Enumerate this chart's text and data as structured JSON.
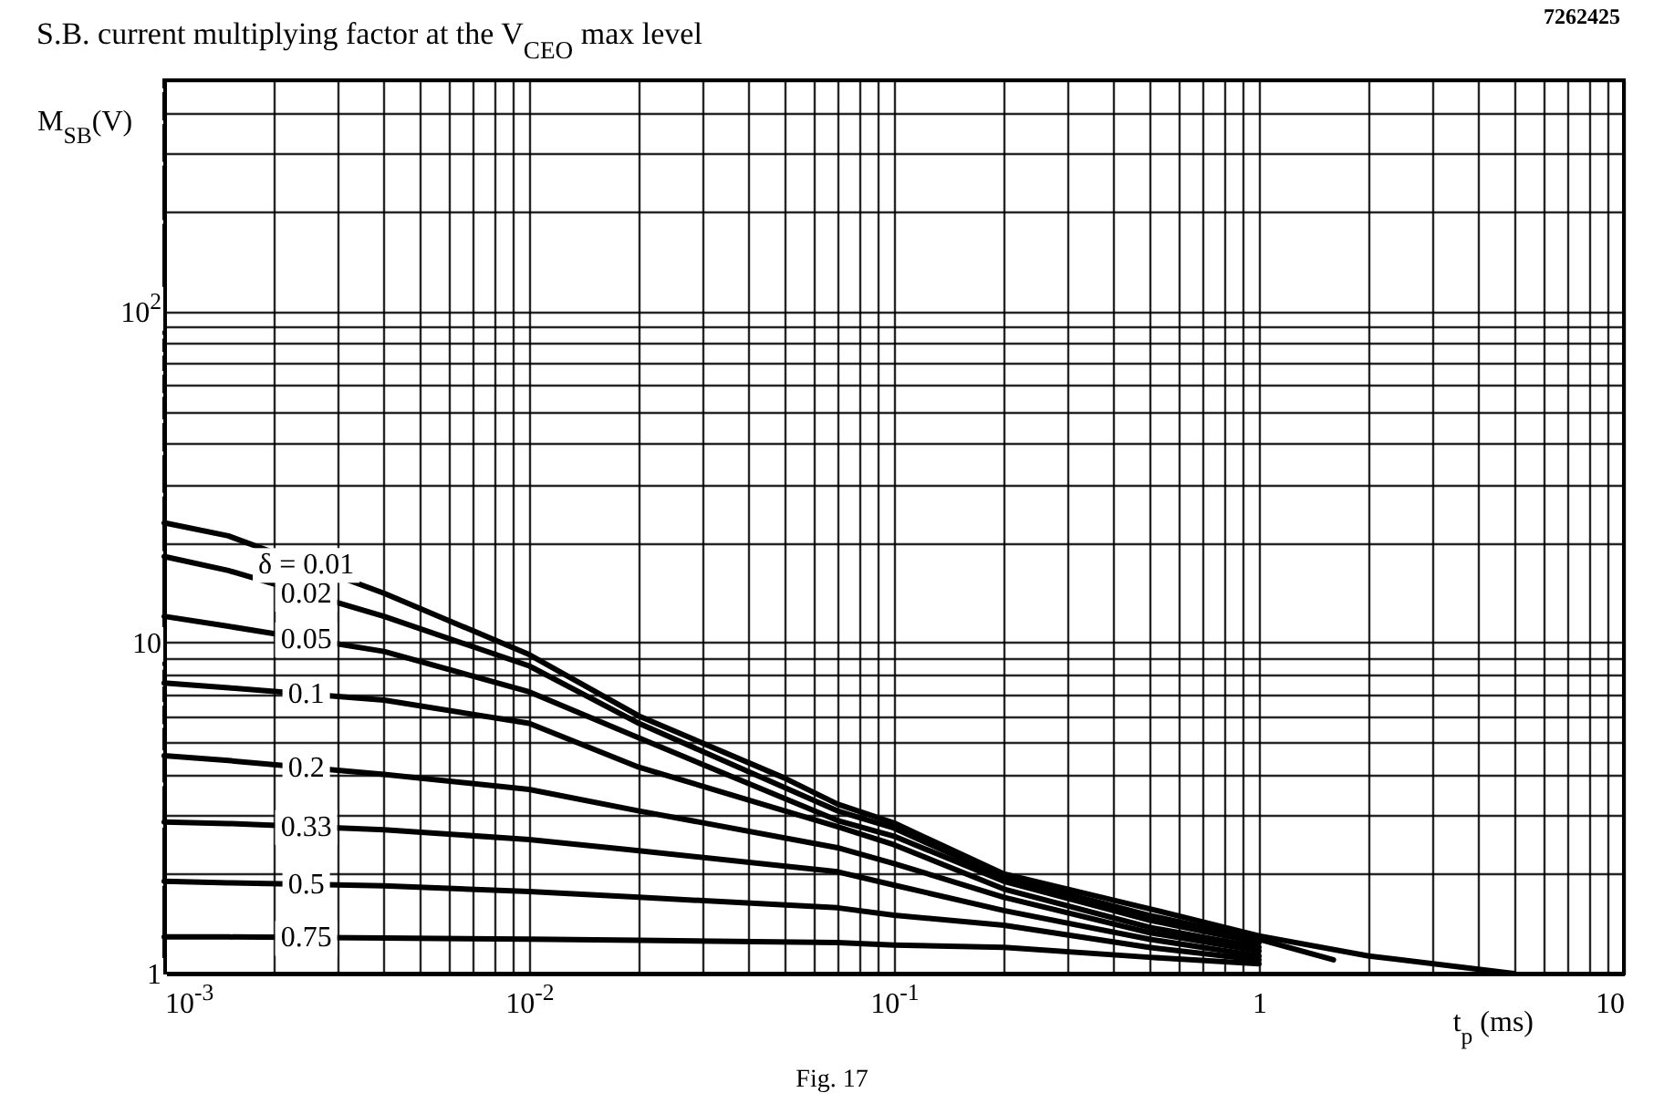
{
  "chart_data": {
    "type": "line",
    "title": "S.B. current multiplying factor at the V$_{CEO}$ max level",
    "xlabel": "t$_{p}$ (ms)",
    "ylabel": "M$_{SB}$(V)",
    "annotations": [
      "7262425",
      "Fig. 17"
    ],
    "log": "xy",
    "grid": true,
    "xlim": [
      0.001,
      10
    ],
    "ylim": [
      1,
      500
    ],
    "xticks": [
      {
        "value": 0.001,
        "label": "10$^{-3}$"
      },
      {
        "value": 0.002,
        "label": null
      },
      {
        "value": 0.003,
        "label": null
      },
      {
        "value": 0.004,
        "label": null
      },
      {
        "value": 0.005,
        "label": null
      },
      {
        "value": 0.006,
        "label": null
      },
      {
        "value": 0.007,
        "label": null
      },
      {
        "value": 0.008,
        "label": null
      },
      {
        "value": 0.009,
        "label": null
      },
      {
        "value": 0.01,
        "label": "10$^{-2}$"
      },
      {
        "value": 0.02,
        "label": null
      },
      {
        "value": 0.03,
        "label": null
      },
      {
        "value": 0.04,
        "label": null
      },
      {
        "value": 0.05,
        "label": null
      },
      {
        "value": 0.06,
        "label": null
      },
      {
        "value": 0.07,
        "label": null
      },
      {
        "value": 0.08,
        "label": null
      },
      {
        "value": 0.09,
        "label": null
      },
      {
        "value": 0.1,
        "label": "10$^{-1}$"
      },
      {
        "value": 0.2,
        "label": null
      },
      {
        "value": 0.3,
        "label": null
      },
      {
        "value": 0.4,
        "label": null
      },
      {
        "value": 0.5,
        "label": null
      },
      {
        "value": 0.6,
        "label": null
      },
      {
        "value": 0.7,
        "label": null
      },
      {
        "value": 0.8,
        "label": null
      },
      {
        "value": 0.9,
        "label": null
      },
      1,
      {
        "value": 2,
        "label": null
      },
      {
        "value": 3,
        "label": null
      },
      {
        "value": 4,
        "label": null
      },
      {
        "value": 5,
        "label": null
      },
      {
        "value": 6,
        "label": null
      },
      {
        "value": 7,
        "label": null
      },
      {
        "value": 8,
        "label": null
      },
      {
        "value": 9,
        "label": null
      },
      10
    ],
    "yticks": [
      1,
      {
        "value": 2,
        "label": null
      },
      {
        "value": 3,
        "label": null
      },
      {
        "value": 4,
        "label": null
      },
      {
        "value": 5,
        "label": null
      },
      {
        "value": 6,
        "label": null
      },
      {
        "value": 7,
        "label": null
      },
      {
        "value": 8,
        "label": null
      },
      {
        "value": 9,
        "label": null
      },
      10,
      {
        "value": 20,
        "label": null
      },
      {
        "value": 30,
        "label": null
      },
      {
        "value": 40,
        "label": null
      },
      {
        "value": 50,
        "label": null
      },
      {
        "value": 60,
        "label": null
      },
      {
        "value": 70,
        "label": null
      },
      {
        "value": 80,
        "label": null
      },
      {
        "value": 90,
        "label": null
      },
      {
        "value": 100,
        "label": "10$^{2}$"
      },
      {
        "value": 200,
        "label": null
      },
      {
        "value": 300,
        "label": null
      },
      {
        "value": 400,
        "label": null
      },
      {
        "value": 500,
        "label": null
      }
    ],
    "x": [
      0.001,
      0.0015,
      0.004,
      0.01,
      0.02,
      0.07,
      0.1,
      0.2,
      0.5,
      1
    ],
    "series": [
      {
        "name": "δ = 0.01",
        "color": "#000000",
        "x": [
          0.001,
          0.0015,
          0.004,
          0.01,
          0.02,
          0.05,
          0.07,
          0.1,
          0.2,
          0.5,
          1,
          2,
          5
        ],
        "values": [
          23,
          21,
          14.1,
          9.2,
          6.0,
          3.9,
          3.25,
          2.85,
          2.0,
          1.57,
          1.3,
          1.13,
          1.0
        ]
      },
      {
        "name": "0.02",
        "color": "#000000",
        "x": [
          0.001,
          0.0015,
          0.004,
          0.01,
          0.02,
          0.07,
          0.1,
          0.2,
          0.5,
          1,
          1.6
        ],
        "values": [
          18.2,
          16.5,
          12,
          8.5,
          5.7,
          3.1,
          2.75,
          1.95,
          1.5,
          1.27,
          1.1
        ]
      },
      {
        "name": "0.05",
        "color": "#000000",
        "values": [
          12,
          11.2,
          9.4,
          7.1,
          5.15,
          2.9,
          2.6,
          1.9,
          1.45,
          1.24
        ]
      },
      {
        "name": "0.1",
        "color": "#000000",
        "values": [
          7.55,
          7.3,
          6.7,
          5.7,
          4.2,
          2.78,
          2.45,
          1.8,
          1.38,
          1.2
        ]
      },
      {
        "name": "0.2",
        "color": "#000000",
        "values": [
          4.55,
          4.4,
          4.0,
          3.6,
          3.1,
          2.4,
          2.15,
          1.7,
          1.33,
          1.17
        ]
      },
      {
        "name": "0.33",
        "color": "#000000",
        "values": [
          2.87,
          2.84,
          2.72,
          2.54,
          2.35,
          2.03,
          1.85,
          1.55,
          1.27,
          1.13
        ]
      },
      {
        "name": "0.5",
        "color": "#000000",
        "values": [
          1.9,
          1.88,
          1.84,
          1.77,
          1.7,
          1.58,
          1.5,
          1.4,
          1.2,
          1.1
        ]
      },
      {
        "name": "0.75",
        "color": "#000000",
        "values": [
          1.29,
          1.29,
          1.28,
          1.27,
          1.26,
          1.24,
          1.22,
          1.2,
          1.12,
          1.07
        ]
      }
    ]
  }
}
